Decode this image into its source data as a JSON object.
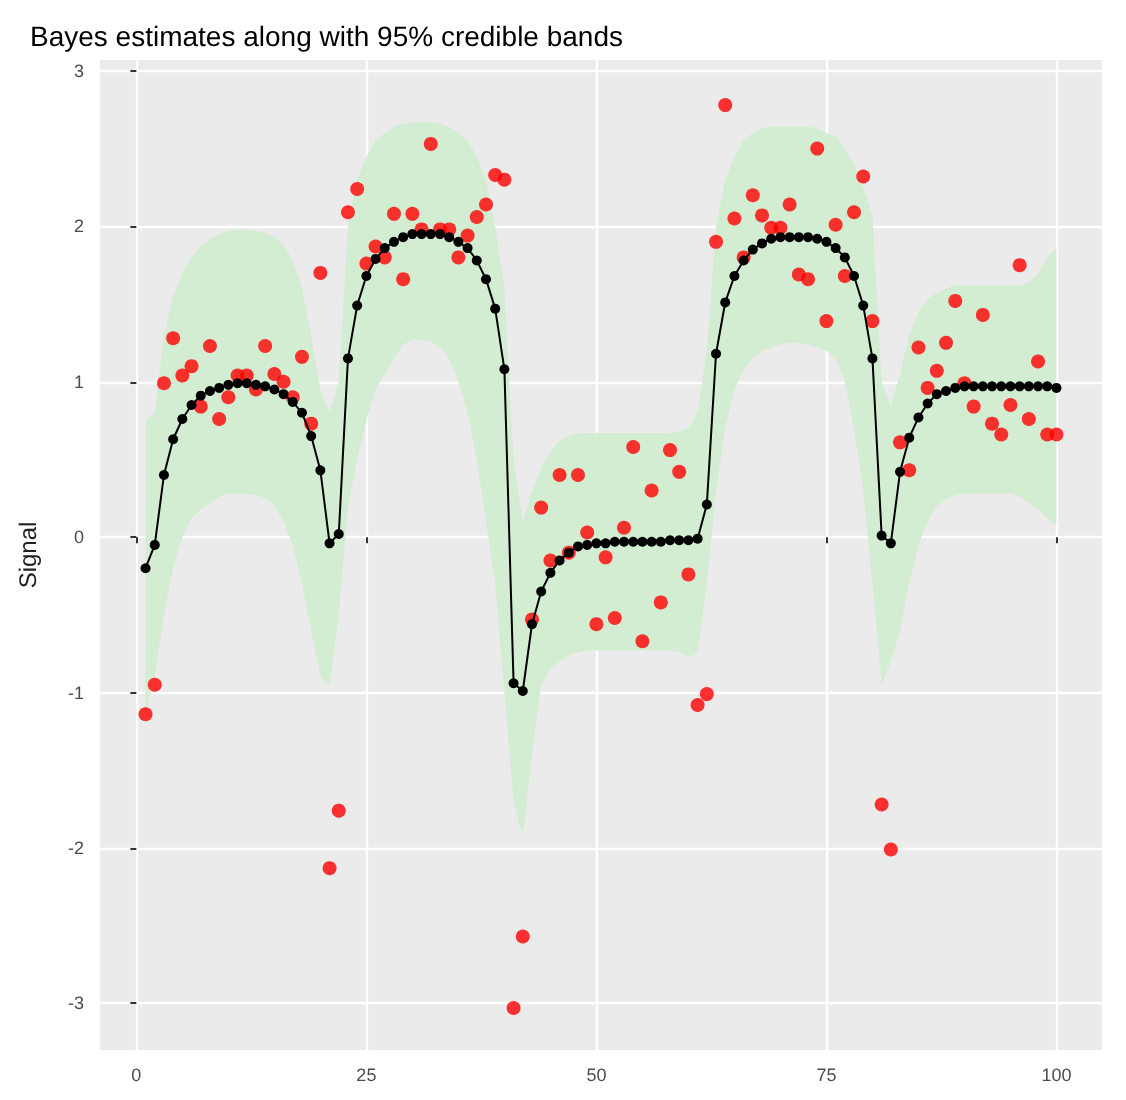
{
  "chart_data": {
    "type": "scatter",
    "title": "Bayes estimates along with 95% credible bands",
    "ylabel": "Signal",
    "x": [
      1,
      2,
      3,
      4,
      5,
      6,
      7,
      8,
      9,
      10,
      11,
      12,
      13,
      14,
      15,
      16,
      17,
      18,
      19,
      20,
      21,
      22,
      23,
      24,
      25,
      26,
      27,
      28,
      29,
      30,
      31,
      32,
      33,
      34,
      35,
      36,
      37,
      38,
      39,
      40,
      41,
      42,
      43,
      44,
      45,
      46,
      47,
      48,
      49,
      50,
      51,
      52,
      53,
      54,
      55,
      56,
      57,
      58,
      59,
      60,
      61,
      62,
      63,
      64,
      65,
      66,
      67,
      68,
      69,
      70,
      71,
      72,
      73,
      74,
      75,
      76,
      77,
      78,
      79,
      80,
      81,
      82,
      83,
      84,
      85,
      86,
      87,
      88,
      89,
      90,
      91,
      92,
      93,
      94,
      95,
      96,
      97,
      98,
      99,
      100
    ],
    "xlim": [
      -3.95,
      104.95
    ],
    "xticks": [
      0,
      25,
      50,
      75,
      100
    ],
    "ylim": [
      -3.3,
      3.07
    ],
    "yticks": [
      -3,
      -2,
      -1,
      0,
      1,
      2,
      3
    ],
    "grid": true,
    "marker": "circle",
    "line_style": "solid",
    "series": [
      {
        "type": "line",
        "color": "#000000",
        "values": [
          -0.2,
          -0.05,
          0.4,
          0.63,
          0.76,
          0.85,
          0.91,
          0.94,
          0.96,
          0.98,
          0.99,
          0.99,
          0.98,
          0.97,
          0.95,
          0.92,
          0.87,
          0.8,
          0.65,
          0.43,
          -0.04,
          0.02,
          1.15,
          1.49,
          1.68,
          1.79,
          1.86,
          1.9,
          1.93,
          1.95,
          1.95,
          1.95,
          1.95,
          1.93,
          1.9,
          1.86,
          1.78,
          1.66,
          1.47,
          1.08,
          -0.94,
          -0.99,
          -0.56,
          -0.35,
          -0.23,
          -0.15,
          -0.1,
          -0.06,
          -0.05,
          -0.04,
          -0.04,
          -0.03,
          -0.03,
          -0.03,
          -0.03,
          -0.03,
          -0.03,
          -0.02,
          -0.02,
          -0.02,
          -0.01,
          0.21,
          1.18,
          1.51,
          1.68,
          1.78,
          1.85,
          1.89,
          1.92,
          1.93,
          1.93,
          1.93,
          1.93,
          1.92,
          1.9,
          1.86,
          1.8,
          1.68,
          1.49,
          1.15,
          0.01,
          -0.04,
          0.42,
          0.64,
          0.77,
          0.86,
          0.92,
          0.94,
          0.96,
          0.97,
          0.97,
          0.97,
          0.97,
          0.97,
          0.97,
          0.97,
          0.97,
          0.97,
          0.97,
          0.96
        ],
        "lower": [
          -1.13,
          -0.9,
          -0.5,
          -0.2,
          0,
          0.12,
          0.18,
          0.22,
          0.26,
          0.28,
          0.28,
          0.28,
          0.27,
          0.25,
          0.2,
          0.1,
          -0.05,
          -0.3,
          -0.6,
          -0.9,
          -0.95,
          -0.5,
          0.2,
          0.5,
          0.75,
          0.95,
          1.05,
          1.15,
          1.24,
          1.27,
          1.27,
          1.26,
          1.22,
          1.15,
          1.0,
          0.8,
          0.5,
          0.1,
          -0.3,
          -1.0,
          -1.7,
          -1.93,
          -1.4,
          -0.95,
          -0.85,
          -0.8,
          -0.76,
          -0.74,
          -0.73,
          -0.73,
          -0.73,
          -0.73,
          -0.73,
          -0.73,
          -0.73,
          -0.73,
          -0.73,
          -0.73,
          -0.74,
          -0.77,
          -0.75,
          -0.3,
          0.3,
          0.7,
          0.95,
          1.08,
          1.15,
          1.2,
          1.22,
          1.24,
          1.25,
          1.25,
          1.24,
          1.22,
          1.2,
          1.15,
          1.0,
          0.7,
          0.3,
          -0.3,
          -0.95,
          -0.8,
          -0.6,
          -0.29,
          -0.05,
          0.1,
          0.2,
          0.25,
          0.27,
          0.28,
          0.28,
          0.28,
          0.28,
          0.28,
          0.28,
          0.26,
          0.22,
          0.18,
          0.12,
          0.08
        ],
        "upper": [
          0.75,
          0.8,
          1.3,
          1.55,
          1.7,
          1.8,
          1.87,
          1.92,
          1.95,
          1.97,
          1.98,
          1.98,
          1.97,
          1.96,
          1.93,
          1.88,
          1.78,
          1.6,
          1.3,
          0.95,
          0.8,
          1.0,
          2.0,
          2.3,
          2.45,
          2.55,
          2.6,
          2.64,
          2.66,
          2.67,
          2.67,
          2.67,
          2.66,
          2.64,
          2.6,
          2.55,
          2.45,
          2.3,
          2.0,
          1.6,
          0.5,
          0.1,
          0.3,
          0.45,
          0.55,
          0.62,
          0.65,
          0.67,
          0.67,
          0.67,
          0.67,
          0.67,
          0.67,
          0.67,
          0.67,
          0.67,
          0.67,
          0.67,
          0.68,
          0.7,
          0.8,
          1.2,
          2.0,
          2.3,
          2.45,
          2.55,
          2.6,
          2.63,
          2.64,
          2.64,
          2.64,
          2.64,
          2.64,
          2.63,
          2.6,
          2.58,
          2.5,
          2.4,
          2.25,
          2.07,
          1.0,
          0.85,
          1.05,
          1.3,
          1.45,
          1.53,
          1.57,
          1.6,
          1.62,
          1.62,
          1.62,
          1.62,
          1.62,
          1.62,
          1.62,
          1.62,
          1.64,
          1.7,
          1.8,
          1.86
        ]
      },
      {
        "color": "#ff0000",
        "values": [
          -1.14,
          -0.95,
          0.99,
          1.28,
          1.04,
          1.1,
          0.84,
          1.23,
          0.76,
          0.9,
          1.04,
          1.04,
          0.95,
          1.23,
          1.05,
          1.0,
          0.9,
          1.16,
          0.73,
          1.7,
          -2.13,
          -1.76,
          2.09,
          2.24,
          1.76,
          1.87,
          1.8,
          2.08,
          1.66,
          2.08,
          1.98,
          2.53,
          1.98,
          1.98,
          1.8,
          1.94,
          2.06,
          2.14,
          2.33,
          2.3,
          -3.03,
          -2.57,
          -0.53,
          0.19,
          -0.15,
          0.4,
          -0.1,
          0.4,
          0.03,
          -0.56,
          -0.13,
          -0.52,
          0.06,
          0.58,
          -0.67,
          0.3,
          -0.42,
          0.56,
          0.42,
          -0.24,
          -1.08,
          -1.01,
          1.9,
          2.78,
          2.05,
          1.8,
          2.2,
          2.07,
          1.99,
          1.99,
          2.14,
          1.69,
          1.66,
          2.5,
          1.39,
          2.01,
          1.68,
          2.09,
          2.32,
          1.39,
          -1.72,
          -2.01,
          0.61,
          0.43,
          1.22,
          0.96,
          1.07,
          1.25,
          1.52,
          0.99,
          0.84,
          1.43,
          0.73,
          0.66,
          0.85,
          1.75,
          0.76,
          1.13,
          0.66,
          0.66
        ]
      }
    ]
  }
}
